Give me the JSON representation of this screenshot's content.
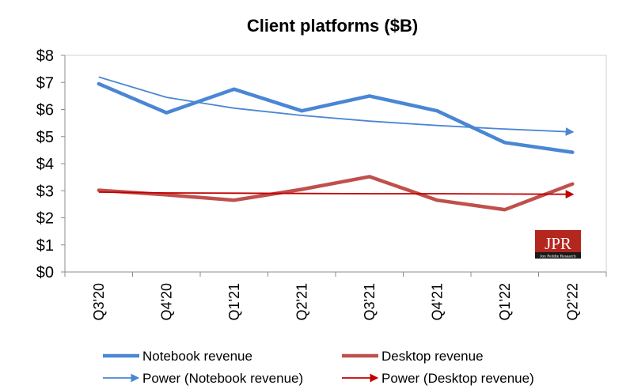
{
  "chart_data": {
    "type": "line",
    "title": "Client platforms ($B)",
    "xlabel": "",
    "ylabel": "",
    "categories": [
      "Q3'20",
      "Q4'20",
      "Q1'21",
      "Q2'21",
      "Q3'21",
      "Q4'21",
      "Q1'22",
      "Q2'22"
    ],
    "y_tick_labels": [
      "$0",
      "$1",
      "$2",
      "$3",
      "$4",
      "$5",
      "$6",
      "$7",
      "$8"
    ],
    "ylim": [
      0,
      8
    ],
    "grid": false,
    "legend_position": "bottom",
    "series": [
      {
        "name": "Notebook revenue",
        "style": "line",
        "color": "#4a86d4",
        "values": [
          6.95,
          5.88,
          6.75,
          5.95,
          6.5,
          5.95,
          4.78,
          4.42
        ]
      },
      {
        "name": "Desktop revenue",
        "style": "line",
        "color": "#c0504d",
        "values": [
          3.02,
          2.85,
          2.65,
          3.05,
          3.52,
          2.65,
          2.3,
          3.25
        ]
      },
      {
        "name": "Power (Notebook revenue)",
        "style": "trendline",
        "color": "#4a86d4",
        "values": [
          7.2,
          6.45,
          6.05,
          5.78,
          5.57,
          5.41,
          5.28,
          5.17
        ]
      },
      {
        "name": "Power (Desktop revenue)",
        "style": "trendline",
        "color": "#c00000",
        "values": [
          2.95,
          2.92,
          2.91,
          2.9,
          2.89,
          2.89,
          2.88,
          2.87
        ]
      }
    ]
  },
  "logo": {
    "name": "jpr-logo",
    "text": "JPR",
    "subtitle": "Jon Peddie Research",
    "color": "#b3271e"
  }
}
